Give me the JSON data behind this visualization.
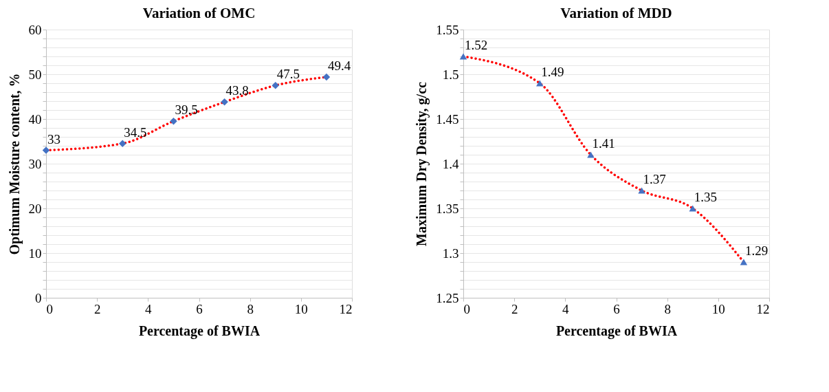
{
  "chart_data": [
    {
      "type": "line",
      "title": "Variation of OMC",
      "xlabel": "Percentage of BWIA",
      "ylabel": "Optimum Moisture content, %",
      "x": [
        0,
        3,
        5,
        7,
        9,
        11
      ],
      "xlim": [
        0,
        12
      ],
      "xticks": [
        0,
        2,
        4,
        6,
        8,
        10,
        12
      ],
      "ylim": [
        0,
        60
      ],
      "yticks": [
        0,
        {
          "value": 2,
          "label": null
        },
        {
          "value": 4,
          "label": null
        },
        {
          "value": 6,
          "label": null
        },
        {
          "value": 8,
          "label": null
        },
        10,
        {
          "value": 12,
          "label": null
        },
        {
          "value": 14,
          "label": null
        },
        {
          "value": 16,
          "label": null
        },
        {
          "value": 18,
          "label": null
        },
        20,
        {
          "value": 22,
          "label": null
        },
        {
          "value": 24,
          "label": null
        },
        {
          "value": 26,
          "label": null
        },
        {
          "value": 28,
          "label": null
        },
        30,
        {
          "value": 32,
          "label": null
        },
        {
          "value": 34,
          "label": null
        },
        {
          "value": 36,
          "label": null
        },
        {
          "value": 38,
          "label": null
        },
        40,
        {
          "value": 42,
          "label": null
        },
        {
          "value": 44,
          "label": null
        },
        {
          "value": 46,
          "label": null
        },
        {
          "value": 48,
          "label": null
        },
        50,
        {
          "value": 52,
          "label": null
        },
        {
          "value": 54,
          "label": null
        },
        {
          "value": 56,
          "label": null
        },
        {
          "value": 58,
          "label": null
        },
        60
      ],
      "grid": "y",
      "series": [
        {
          "type": "line",
          "color": "#ff0000",
          "line_style": "dotted",
          "marker": "none",
          "values": [
            33,
            34.5,
            39.5,
            43.8,
            47.5,
            49.4
          ]
        },
        {
          "type": "scatter",
          "color": "#4472c4",
          "marker": "diamond",
          "values": [
            33,
            34.5,
            39.5,
            43.8,
            47.5,
            49.4
          ],
          "value_labels": [
            "33",
            "34.5",
            "39.5",
            "43.8",
            "47.5",
            "49.4"
          ]
        }
      ]
    },
    {
      "type": "line",
      "title": "Variation of MDD",
      "xlabel": "Percentage of BWIA",
      "ylabel": "Maximum Dry Density, g/cc",
      "x": [
        0,
        3,
        5,
        7,
        9,
        11
      ],
      "xlim": [
        0,
        12
      ],
      "xticks": [
        0,
        2,
        4,
        6,
        8,
        10,
        12
      ],
      "ylim": [
        1.25,
        1.55
      ],
      "yticks": [
        1.25,
        {
          "value": 1.26,
          "label": null
        },
        {
          "value": 1.27,
          "label": null
        },
        {
          "value": 1.28,
          "label": null
        },
        {
          "value": 1.29,
          "label": null
        },
        1.3,
        {
          "value": 1.31,
          "label": null
        },
        {
          "value": 1.32,
          "label": null
        },
        {
          "value": 1.33,
          "label": null
        },
        {
          "value": 1.34,
          "label": null
        },
        1.35,
        {
          "value": 1.36,
          "label": null
        },
        {
          "value": 1.37,
          "label": null
        },
        {
          "value": 1.38,
          "label": null
        },
        {
          "value": 1.39,
          "label": null
        },
        1.4,
        {
          "value": 1.41,
          "label": null
        },
        {
          "value": 1.42,
          "label": null
        },
        {
          "value": 1.43,
          "label": null
        },
        {
          "value": 1.44,
          "label": null
        },
        1.45,
        {
          "value": 1.46,
          "label": null
        },
        {
          "value": 1.47,
          "label": null
        },
        {
          "value": 1.48,
          "label": null
        },
        {
          "value": 1.49,
          "label": null
        },
        1.5,
        {
          "value": 1.51,
          "label": null
        },
        {
          "value": 1.52,
          "label": null
        },
        {
          "value": 1.53,
          "label": null
        },
        {
          "value": 1.54,
          "label": null
        },
        1.55
      ],
      "grid": "y",
      "series": [
        {
          "type": "line",
          "color": "#ff0000",
          "line_style": "dotted",
          "marker": "none",
          "values": [
            1.52,
            1.49,
            1.41,
            1.37,
            1.35,
            1.29
          ]
        },
        {
          "type": "scatter",
          "color": "#4472c4",
          "marker": "triangle",
          "values": [
            1.52,
            1.49,
            1.41,
            1.37,
            1.35,
            1.29
          ],
          "value_labels": [
            "1.52",
            "1.49",
            "1.41",
            "1.37",
            "1.35",
            "1.29"
          ]
        }
      ]
    }
  ]
}
